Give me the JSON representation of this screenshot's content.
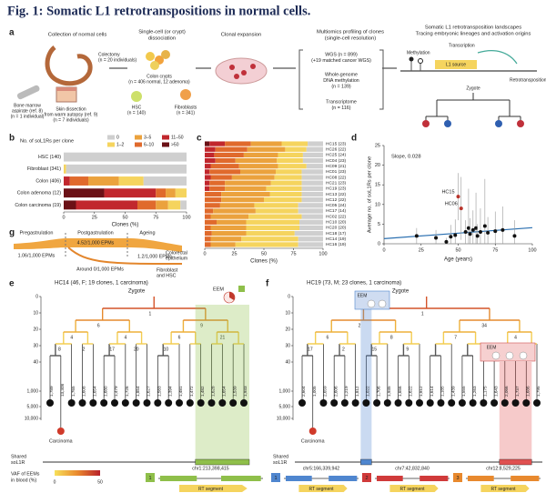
{
  "title": "Fig. 1: Somatic L1 retrotranspositions in normal cells.",
  "panel_labels": [
    "a",
    "b",
    "c",
    "d",
    "e",
    "f",
    "g"
  ],
  "a": {
    "headers": [
      [
        "Collection of normal cells"
      ],
      [
        "Single-cell (or crypt)",
        "dissociation"
      ],
      [
        "Clonal expansion"
      ],
      [
        "Multiomics profiling of clones",
        "(single-cell resolution)"
      ],
      [
        "Somatic L1 retrotransposition landscapes",
        "Tracing embryonic lineages and activation origins"
      ]
    ],
    "sources": [
      [
        "Colectomy",
        "(n = 20 individuals)"
      ],
      [
        "Bone marrow",
        "aspirate (ref. 8)",
        "(n = 1 individual)"
      ],
      [
        "Skin dissection",
        "from warm autopsy (ref. 9)",
        "(n = 7 individuals)"
      ]
    ],
    "cells": [
      [
        "Colon crypts",
        "(n = 406 normal, 12 adenoma)"
      ],
      [
        "HSC",
        "(n = 140)"
      ],
      [
        "Fibroblasts",
        "(n = 341)"
      ]
    ],
    "assays": [
      [
        "WGS (n = 899)",
        "(+19 matched cancer WGS)"
      ],
      [
        "Whole-genome",
        "DNA methylation",
        "(n = 139)"
      ],
      [
        "Transcriptome",
        "(n = 116)"
      ]
    ],
    "landscape": [
      "Methylation",
      "Transcription",
      "L1 source",
      "Retrotransposition",
      "Zygote"
    ]
  },
  "chart_data": [
    {
      "type": "bar",
      "orientation": "horizontal",
      "stacked": true,
      "legend": true,
      "legend_title": "No. of soL1Rs per clone",
      "categories": [
        "HSC (140)",
        "Fibroblast (341)",
        "Colon (406)",
        "Colon adenoma (12)",
        "Colon carcinoma (19)"
      ],
      "series": [
        {
          "name": ">50",
          "color": "#6b1116",
          "values": [
            0,
            0,
            0,
            33,
            10
          ]
        },
        {
          "name": "11–50",
          "color": "#c1272d",
          "values": [
            0,
            0,
            5,
            42,
            50
          ]
        },
        {
          "name": "6–10",
          "color": "#e06a2c",
          "values": [
            0,
            0,
            15,
            8,
            15
          ]
        },
        {
          "name": "3–5",
          "color": "#eba23d",
          "values": [
            0,
            0,
            25,
            8,
            10
          ]
        },
        {
          "name": "1–2",
          "color": "#f5d45e",
          "values": [
            0,
            2,
            20,
            9,
            10
          ]
        },
        {
          "name": "0",
          "color": "#cfcfcf",
          "values": [
            100,
            98,
            35,
            0,
            5
          ]
        }
      ],
      "xlabel": "Clones (%)",
      "xlim": [
        0,
        100
      ],
      "xticks": [
        0,
        25,
        50,
        75,
        100
      ]
    },
    {
      "type": "bar",
      "orientation": "horizontal",
      "stacked": true,
      "legend": false,
      "categories": [
        "HC15 (23)",
        "HC26 (22)",
        "HC25 (24)",
        "HC04 (23)",
        "HC09 (21)",
        "HC01 (23)",
        "HC08 (22)",
        "HC21 (23)",
        "HC19 (23)",
        "HC13 (22)",
        "HC12 (22)",
        "HC05 (24)",
        "HC17 (14)",
        "HC02 (22)",
        "HC10 (20)",
        "HC20 (20)",
        "HC18 (17)",
        "HC14 (19)",
        "HC16 (19)"
      ],
      "series": [
        {
          "name": ">50",
          "color": "#6b1116",
          "values": [
            4,
            0,
            0,
            0,
            0,
            0,
            0,
            0,
            0,
            0,
            0,
            0,
            0,
            0,
            0,
            0,
            0,
            0,
            0
          ]
        },
        {
          "name": "11–50",
          "color": "#c1272d",
          "values": [
            13,
            9,
            8,
            9,
            5,
            4,
            5,
            4,
            4,
            0,
            0,
            0,
            0,
            0,
            0,
            0,
            0,
            0,
            0
          ]
        },
        {
          "name": "6–10",
          "color": "#e06a2c",
          "values": [
            22,
            27,
            25,
            17,
            24,
            26,
            18,
            13,
            13,
            14,
            14,
            13,
            7,
            5,
            10,
            5,
            6,
            5,
            5
          ]
        },
        {
          "name": "3–5",
          "color": "#eba23d",
          "values": [
            26,
            32,
            29,
            35,
            33,
            30,
            36,
            39,
            35,
            41,
            36,
            29,
            36,
            32,
            25,
            30,
            29,
            26,
            21
          ]
        },
        {
          "name": "1–2",
          "color": "#f5d45e",
          "values": [
            22,
            18,
            21,
            22,
            24,
            22,
            23,
            26,
            30,
            27,
            32,
            37,
            36,
            45,
            45,
            45,
            41,
            48,
            53
          ]
        },
        {
          "name": "0",
          "color": "#cfcfcf",
          "values": [
            13,
            14,
            17,
            17,
            14,
            18,
            18,
            18,
            18,
            18,
            18,
            21,
            21,
            18,
            20,
            20,
            24,
            21,
            21
          ]
        }
      ],
      "xlabel": "Clones (%)",
      "xlim": [
        0,
        100
      ],
      "xticks": [
        0,
        25,
        50,
        75,
        100
      ]
    },
    {
      "type": "scatter",
      "x": [
        22,
        35,
        42,
        45,
        48,
        50,
        52,
        55,
        57,
        58,
        60,
        62,
        63,
        65,
        68,
        70,
        75,
        80,
        88
      ],
      "y": [
        2,
        1.5,
        0.5,
        1.8,
        2.2,
        12,
        9,
        3,
        4,
        2.5,
        3.5,
        4,
        2,
        3,
        4.5,
        2.8,
        3.2,
        3.5,
        2
      ],
      "errors": [
        2,
        2,
        1,
        3,
        4,
        6,
        8,
        3,
        10,
        4,
        5,
        9,
        3,
        6,
        12,
        4,
        5,
        6,
        4
      ],
      "colors": [
        "#111",
        "#111",
        "#111",
        "#111",
        "#111",
        "#b8332a",
        "#b8332a",
        "#111",
        "#111",
        "#111",
        "#111",
        "#111",
        "#111",
        "#111",
        "#111",
        "#111",
        "#111",
        "#111",
        "#111"
      ],
      "annotations": [
        {
          "text": "HC15",
          "x": 50,
          "y": 12
        },
        {
          "text": "HC06",
          "x": 52,
          "y": 9
        }
      ],
      "subtitle": "Slope, 0.028",
      "trend": {
        "x": [
          0,
          100
        ],
        "y": [
          1.3,
          4.1
        ],
        "color": "#2a6fb0"
      },
      "xlabel": "Age (years)",
      "ylabel": "Average no. of soL1Rs per clone",
      "xlim": [
        0,
        100
      ],
      "xticks": [
        0,
        25,
        50,
        75,
        100
      ],
      "ylim": [
        0,
        25
      ],
      "yticks": [
        0,
        5,
        10,
        15,
        20,
        25
      ]
    }
  ],
  "g": {
    "phases": [
      "Pregastrulation",
      "Postgastrulation",
      "Ageing"
    ],
    "rates": [
      "1.06/1,000 EPMs",
      "4.52/1,000 EPMs",
      "1.2/1,000 EPMs",
      "Around 0/1,000 EPMs"
    ],
    "tissues": [
      [
        "Colorectal",
        "epithelium"
      ],
      [
        "Fibroblast",
        "and HSC"
      ]
    ]
  },
  "e": {
    "title": "HC14 (46, F; 19 clones, 1 carcinoma)",
    "root": "Zygote",
    "ylabel": "No. of point mutations (molecular time)",
    "yticks": [
      "0",
      "10",
      "20",
      "30",
      "40",
      "1,000",
      "5,000",
      "10,000"
    ],
    "leaf_mutations": [
      "1,789",
      "13,308",
      "1,765",
      "1,608",
      "1,654",
      "1,680",
      "1,479",
      "1,726",
      "1,854",
      "1,627",
      "1,583",
      "1,394",
      "1,481",
      "1,472",
      "1,482",
      "1,628",
      "1,654",
      "1,539",
      "1,933"
    ],
    "branch_labels": [
      "1",
      "6",
      "9",
      "4",
      "4",
      "6",
      "21",
      "8",
      "2",
      "17",
      "20",
      "10"
    ],
    "carcinoma": "Carcinoma",
    "eem": [
      "EEM"
    ],
    "shared": [
      "Shared",
      "soL1R"
    ],
    "vaf_label": [
      "VAF of EEMs",
      "in blood (%)"
    ],
    "vaf_ticks": [
      "0",
      "50"
    ],
    "loci": [
      "chr1:213,398,415"
    ],
    "event_ids": [
      "1"
    ],
    "segment": "RT segment"
  },
  "f": {
    "title": "HC19 (73, M; 23 clones, 1 carcinoma)",
    "root": "Zygote",
    "yticks": [
      "0",
      "10",
      "20",
      "30",
      "40",
      "1,000",
      "5,000",
      "10,000"
    ],
    "leaf_mutations": [
      "2,604",
      "1,005",
      "2,659",
      "2,606",
      "1,219",
      "1,812",
      "1,022",
      "1,706",
      "1,935",
      "1,656",
      "1,622",
      "1,812",
      "1,614",
      "1,185",
      "1,439",
      "1,555",
      "1,263",
      "1,175",
      "1,643",
      "2,066",
      "1,737",
      "1,686",
      "1,795"
    ],
    "branch_labels": [
      "1",
      "2",
      "34",
      "6",
      "8",
      "7",
      "4",
      "17",
      "2",
      "15",
      "9"
    ],
    "carcinoma": "Carcinoma",
    "eem": [
      "EEM",
      "EEM"
    ],
    "shared": [
      "Shared",
      "soL1R"
    ],
    "loci": [
      "chr5:166,339,942",
      "chr7:42,832,840",
      "chr12:8,529,225"
    ],
    "event_ids": [
      "1",
      "2",
      "3"
    ],
    "segment": "RT segment"
  }
}
